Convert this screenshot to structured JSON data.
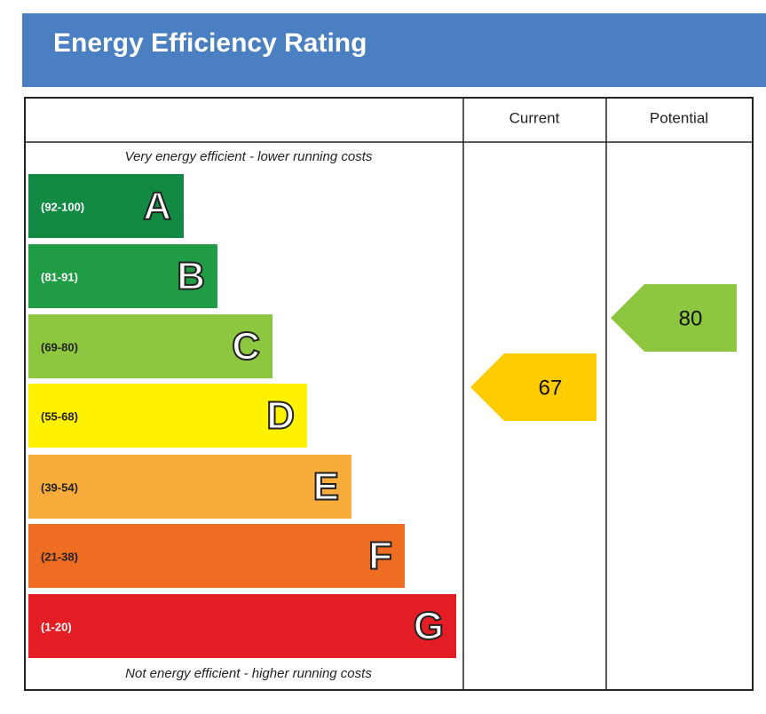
{
  "header": {
    "title": "Energy Efficiency Rating",
    "color": "#4a7fc1"
  },
  "columns": {
    "current": "Current",
    "potential": "Potential"
  },
  "top_note": "Very energy efficient - lower running costs",
  "bottom_note": "Not energy efficient - higher running costs",
  "bands": [
    {
      "range": "(92-100)",
      "letter": "A",
      "color": "#138a43",
      "text_color": "#ffffff"
    },
    {
      "range": "(81-91)",
      "letter": "B",
      "color": "#1f9c44",
      "text_color": "#ffffff"
    },
    {
      "range": "(69-80)",
      "letter": "C",
      "color": "#8dc63f",
      "text_color": "#222222"
    },
    {
      "range": "(55-68)",
      "letter": "D",
      "color": "#fff200",
      "text_color": "#222222"
    },
    {
      "range": "(39-54)",
      "letter": "E",
      "color": "#f7ac3c",
      "text_color": "#222222"
    },
    {
      "range": "(21-38)",
      "letter": "F",
      "color": "#ef6c23",
      "text_color": "#222222"
    },
    {
      "range": "(1-20)",
      "letter": "G",
      "color": "#e31d23",
      "text_color": "#ffffff"
    }
  ],
  "current": {
    "value": 67,
    "color": "#ffcc00"
  },
  "potential": {
    "value": 80,
    "color": "#8dc63f"
  }
}
